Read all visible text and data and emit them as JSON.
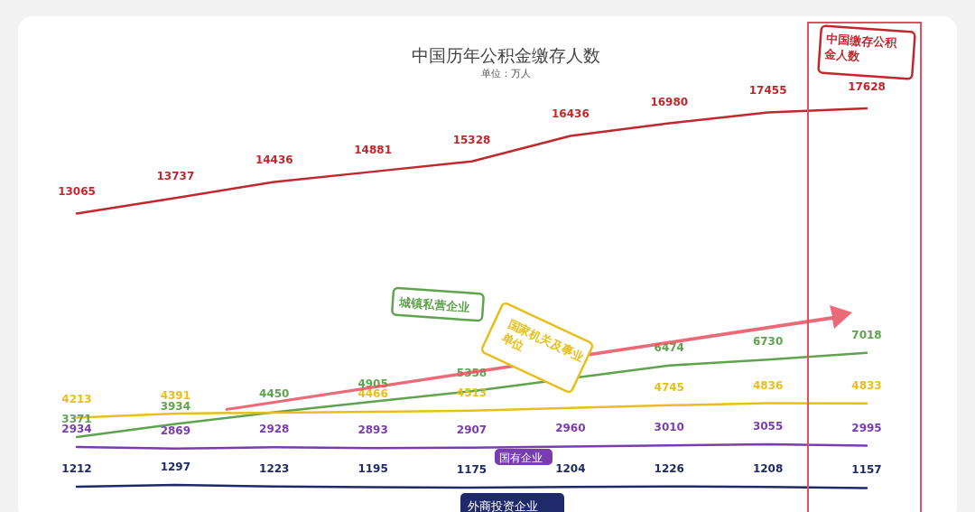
{
  "chart_data": {
    "type": "line",
    "title": "中国历年公积金缴存人数",
    "subtitle": "单位：万人",
    "categories": [
      null,
      null,
      null,
      null,
      null,
      null,
      null,
      null,
      null
    ],
    "data_labels": true,
    "legend": false,
    "marker": "none",
    "line_style": "solid",
    "series": [
      {
        "name": "中国缴存公积金人数",
        "color": "#c0282d",
        "values": [
          13065,
          13737,
          14436,
          14881,
          15328,
          16436,
          16980,
          17455,
          17628
        ]
      },
      {
        "name": "城镇私营企业",
        "color": "#5fa34f",
        "values": [
          3371,
          3934,
          4450,
          4905,
          5358,
          null,
          6474,
          6730,
          7018
        ],
        "value_labels": [
          "3371",
          "3934",
          "4450",
          "4905",
          "5358",
          null,
          "6474",
          "6730",
          "7018"
        ]
      },
      {
        "name": "国家机关及事业单位",
        "color": "#e8bf1a",
        "values": [
          4213,
          4391,
          null,
          4466,
          4513,
          null,
          4745,
          4836,
          4833
        ],
        "value_labels": [
          "4213",
          "4391",
          null,
          "4466",
          "4513",
          null,
          "4745",
          "4836",
          "4833"
        ]
      },
      {
        "name": "国有企业",
        "color": "#7a3db0",
        "values": [
          2934,
          2869,
          2928,
          2893,
          2907,
          2960,
          3010,
          3055,
          2995
        ]
      },
      {
        "name": "外商投资企业",
        "color": "#1f2a6b",
        "values": [
          1212,
          1297,
          1223,
          1195,
          1175,
          1204,
          1226,
          1208,
          1157
        ]
      }
    ]
  }
}
